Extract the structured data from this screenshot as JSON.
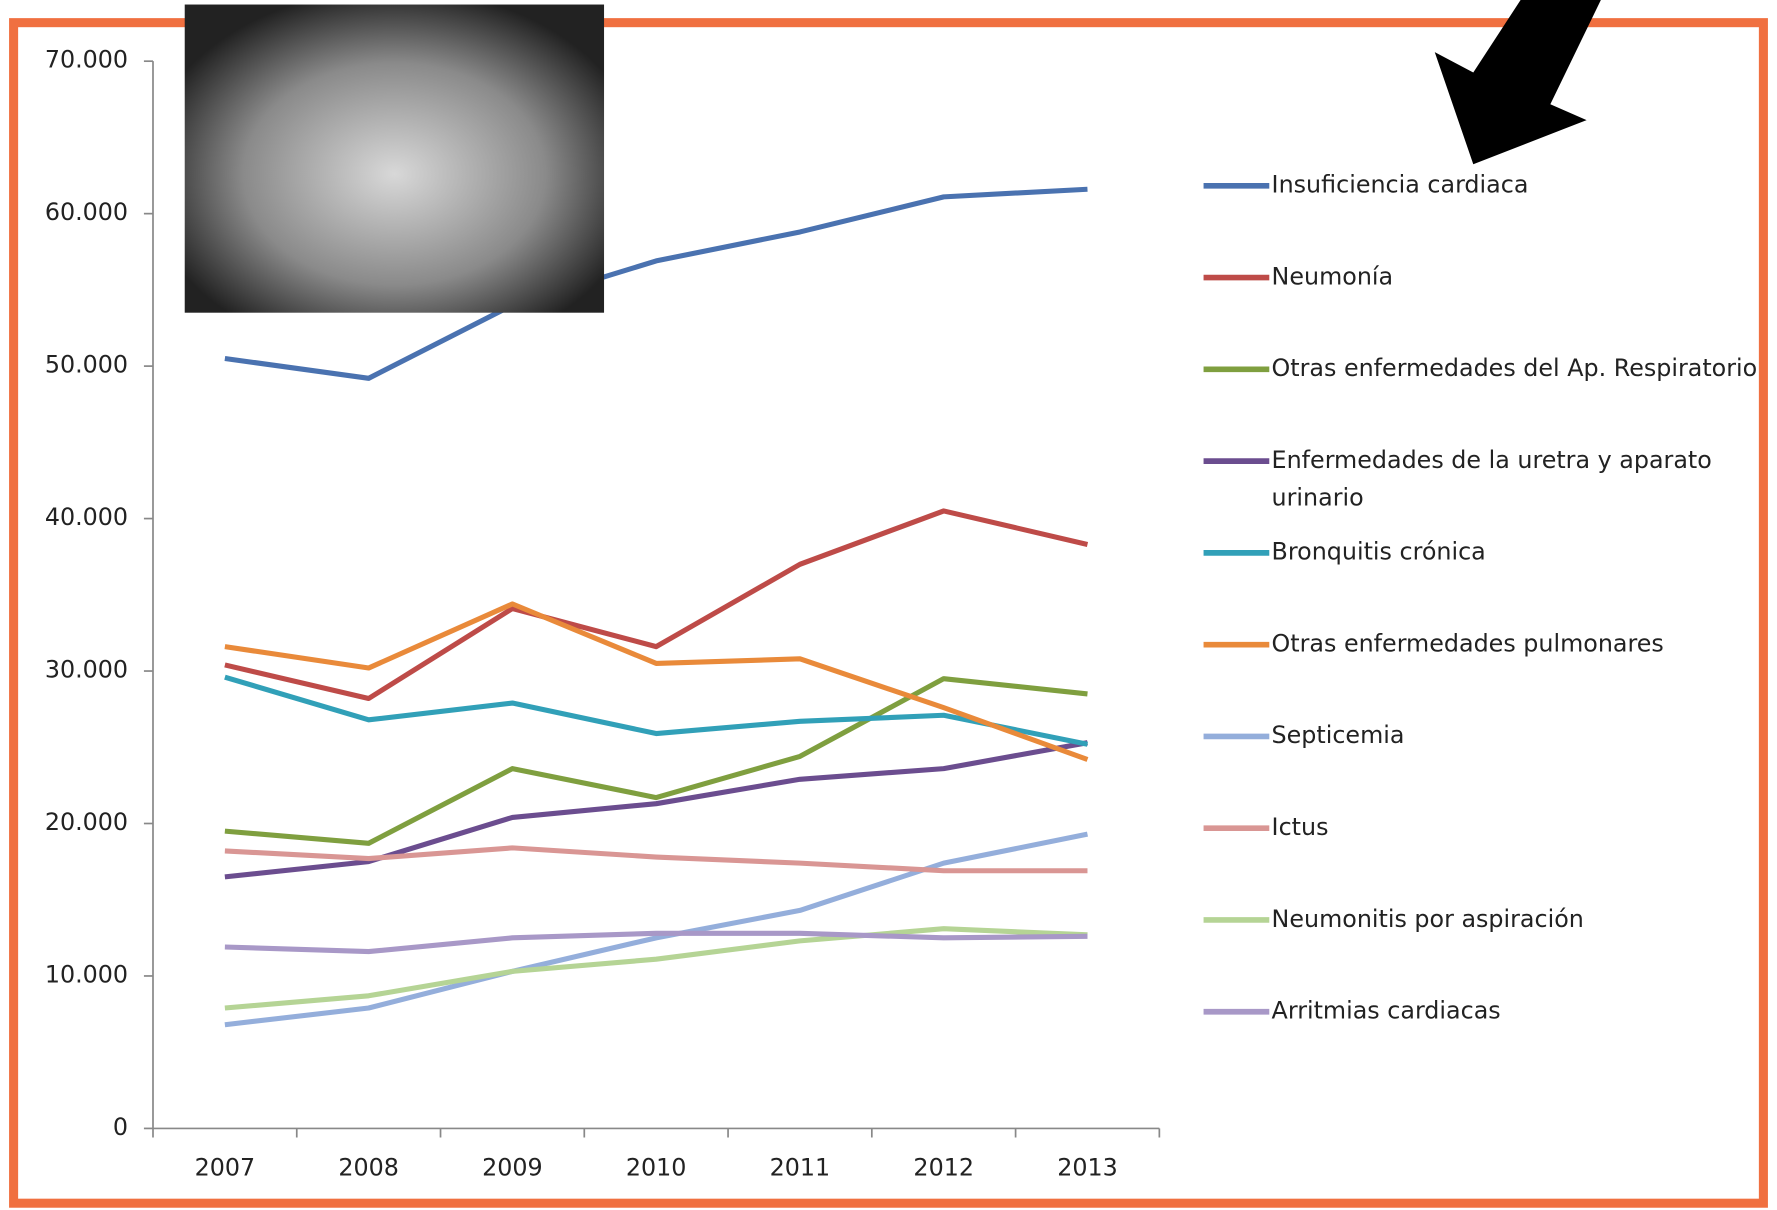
{
  "chart_data": {
    "type": "line",
    "categories": [
      "2007",
      "2008",
      "2009",
      "2010",
      "2011",
      "2012",
      "2013"
    ],
    "ylim": [
      0,
      70000
    ],
    "yticks": [
      0,
      {
        "value": 10000,
        "label": "10.000"
      },
      {
        "value": 20000,
        "label": "20.000"
      },
      {
        "value": 30000,
        "label": "30.000"
      },
      {
        "value": 40000,
        "label": "40.000"
      },
      {
        "value": 50000,
        "label": "50.000"
      },
      {
        "value": 60000,
        "label": "60.000"
      },
      {
        "value": 70000,
        "label": "70.000"
      }
    ],
    "legend": "right",
    "series": [
      {
        "name": "Insuficiencia cardiaca",
        "color": "#4a72b0",
        "values": [
          50500,
          49200,
          54000,
          56900,
          58800,
          61100,
          61600
        ]
      },
      {
        "name": "Neumonía",
        "color": "#be4b48",
        "values": [
          30400,
          28200,
          34100,
          31600,
          37000,
          40500,
          38300
        ]
      },
      {
        "name": "Otras enfermedades del Ap. Respiratorio",
        "color": "#7f9f3f",
        "values": [
          19500,
          18700,
          23600,
          21700,
          24400,
          29500,
          28500
        ]
      },
      {
        "name": "Enfermedades de la uretra y aparato urinario",
        "color": "#6b4d8f",
        "values": [
          16500,
          17500,
          20400,
          21300,
          22900,
          23600,
          25300
        ]
      },
      {
        "name": "Bronquitis crónica",
        "color": "#31a0b8",
        "values": [
          29600,
          26800,
          27900,
          25900,
          26700,
          27100,
          25200
        ]
      },
      {
        "name": "Otras enfermedades pulmonares",
        "color": "#e98a3a",
        "values": [
          31600,
          30200,
          34400,
          30500,
          30800,
          27600,
          24200
        ]
      },
      {
        "name": "Septicemia",
        "color": "#94aedb",
        "values": [
          6800,
          7900,
          10300,
          12500,
          14300,
          17400,
          19300
        ]
      },
      {
        "name": "Ictus",
        "color": "#d99694",
        "values": [
          18200,
          17700,
          18400,
          17800,
          17400,
          16900,
          16900
        ]
      },
      {
        "name": "Neumonitis por aspiración",
        "color": "#b5d495",
        "values": [
          7900,
          8700,
          10300,
          11100,
          12300,
          13100,
          12700
        ]
      },
      {
        "name": "Arritmias cardiacas",
        "color": "#a898c7",
        "values": [
          11900,
          11600,
          12500,
          12800,
          12800,
          12500,
          12600
        ]
      }
    ]
  }
}
